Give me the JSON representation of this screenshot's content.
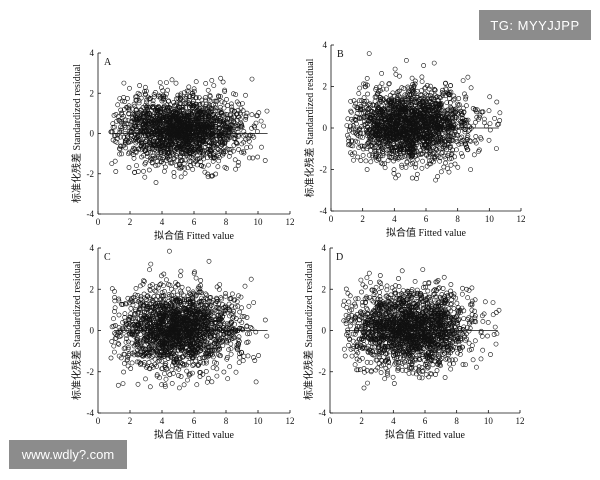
{
  "overlays": {
    "top_right_badge": "TG: MYYJJPP",
    "bottom_left_watermark": "www.wdly?.com"
  },
  "chart_data": [
    {
      "type": "scatter",
      "panel": "A",
      "xlabel": "拟合值 Fitted value",
      "ylabel": "标准化残差 Standardized residual",
      "xlim": [
        0,
        12
      ],
      "ylim": [
        -4,
        4
      ],
      "xticks": [
        0,
        2,
        4,
        6,
        8,
        10,
        12
      ],
      "yticks": [
        -4,
        -2,
        0,
        2,
        4
      ],
      "reference_line_y": 0,
      "point_marker": "open-circle",
      "point_count_estimate": 2000,
      "cloud": {
        "x_range": [
          0.8,
          10.8
        ],
        "x_center": 5.2,
        "y_spread_sd": 0.85,
        "y_max": 2.9,
        "y_min": -2.6
      }
    },
    {
      "type": "scatter",
      "panel": "B",
      "xlabel": "拟合值 Fitted value",
      "ylabel": "标准化残差 Standardized residual",
      "xlim": [
        0,
        12
      ],
      "ylim": [
        -4,
        4
      ],
      "xticks": [
        0,
        2,
        4,
        6,
        8,
        10,
        12
      ],
      "yticks": [
        -4,
        -2,
        0,
        2,
        4
      ],
      "reference_line_y": 0,
      "point_marker": "open-circle",
      "point_count_estimate": 2000,
      "cloud": {
        "x_range": [
          1.0,
          10.8
        ],
        "x_center": 5.0,
        "y_spread_sd": 0.9,
        "y_max": 3.7,
        "y_min": -2.7
      }
    },
    {
      "type": "scatter",
      "panel": "C",
      "xlabel": "拟合值 Fitted value",
      "ylabel": "标准化残差 Standardized residual",
      "xlim": [
        0,
        12
      ],
      "ylim": [
        -4,
        4
      ],
      "xticks": [
        0,
        2,
        4,
        6,
        8,
        10,
        12
      ],
      "yticks": [
        -4,
        -2,
        0,
        2,
        4
      ],
      "reference_line_y": 0,
      "point_marker": "open-circle",
      "point_count_estimate": 2000,
      "cloud": {
        "x_range": [
          0.8,
          10.7
        ],
        "x_center": 5.0,
        "y_spread_sd": 0.95,
        "y_max": 4.0,
        "y_min": -2.8
      }
    },
    {
      "type": "scatter",
      "panel": "D",
      "xlabel": "拟合值 Fitted value",
      "ylabel": "标准化残差 Standardized residual",
      "xlim": [
        0,
        12
      ],
      "ylim": [
        -4,
        4
      ],
      "xticks": [
        0,
        2,
        4,
        6,
        8,
        10,
        12
      ],
      "yticks": [
        -4,
        -2,
        0,
        2,
        4
      ],
      "reference_line_y": 0,
      "point_marker": "open-circle",
      "point_count_estimate": 2000,
      "cloud": {
        "x_range": [
          0.8,
          10.8
        ],
        "x_center": 5.0,
        "y_spread_sd": 0.95,
        "y_max": 4.1,
        "y_min": -2.8
      }
    }
  ]
}
